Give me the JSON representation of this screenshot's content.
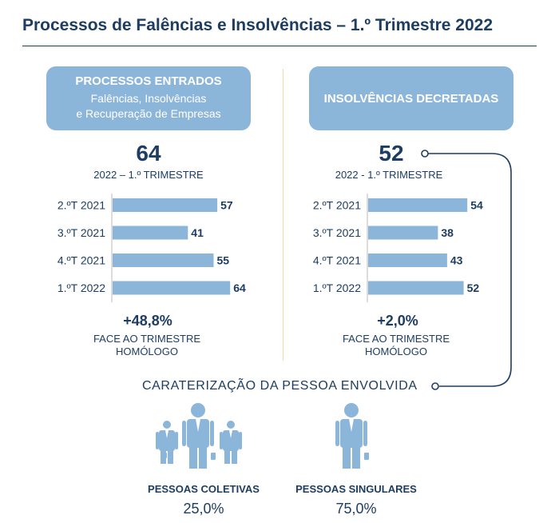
{
  "title": "Processos de Falências e Insolvências – 1.º Trimestre 2022",
  "colors": {
    "navy": "#1d3d63",
    "bar": "#8cb5da",
    "separator": "#f1dca8"
  },
  "left_panel": {
    "header": "PROCESSOS ENTRADOS",
    "sub1": "Falências, Insolvências",
    "sub2": "e Recuperação de Empresas",
    "big_number": "64",
    "period": "2022 – 1.º TRIMESTRE",
    "change": "+48,8%",
    "change_caption1": "FACE AO TRIMESTRE",
    "change_caption2": "HOMÓLOGO"
  },
  "right_panel": {
    "header": "INSOLVÊNCIAS DECRETADAS",
    "big_number": "52",
    "period": "2022 - 1.º TRIMESTRE",
    "change": "+2,0%",
    "change_caption1": "FACE AO TRIMESTRE",
    "change_caption2": "HOMÓLOGO"
  },
  "chart_data": [
    {
      "type": "bar",
      "orientation": "horizontal",
      "title": "PROCESSOS ENTRADOS",
      "categories": [
        "2.ºT 2021",
        "3.ºT 2021",
        "4.ºT 2021",
        "1.ºT 2022"
      ],
      "values": [
        57,
        41,
        55,
        64
      ]
    },
    {
      "type": "bar",
      "orientation": "horizontal",
      "title": "INSOLVÊNCIAS DECRETADAS",
      "categories": [
        "2.ºT 2021",
        "3.ºT 2021",
        "4.ºT 2021",
        "1.ºT 2022"
      ],
      "values": [
        54,
        38,
        43,
        52
      ]
    }
  ],
  "characterization": {
    "title": "CARATERIZAÇÃO DA PESSOA ENVOLVIDA",
    "collective_label": "PESSOAS COLETIVAS",
    "collective_value": "25,0%",
    "singular_label": "PESSOAS SINGULARES",
    "singular_value": "75,0%"
  }
}
